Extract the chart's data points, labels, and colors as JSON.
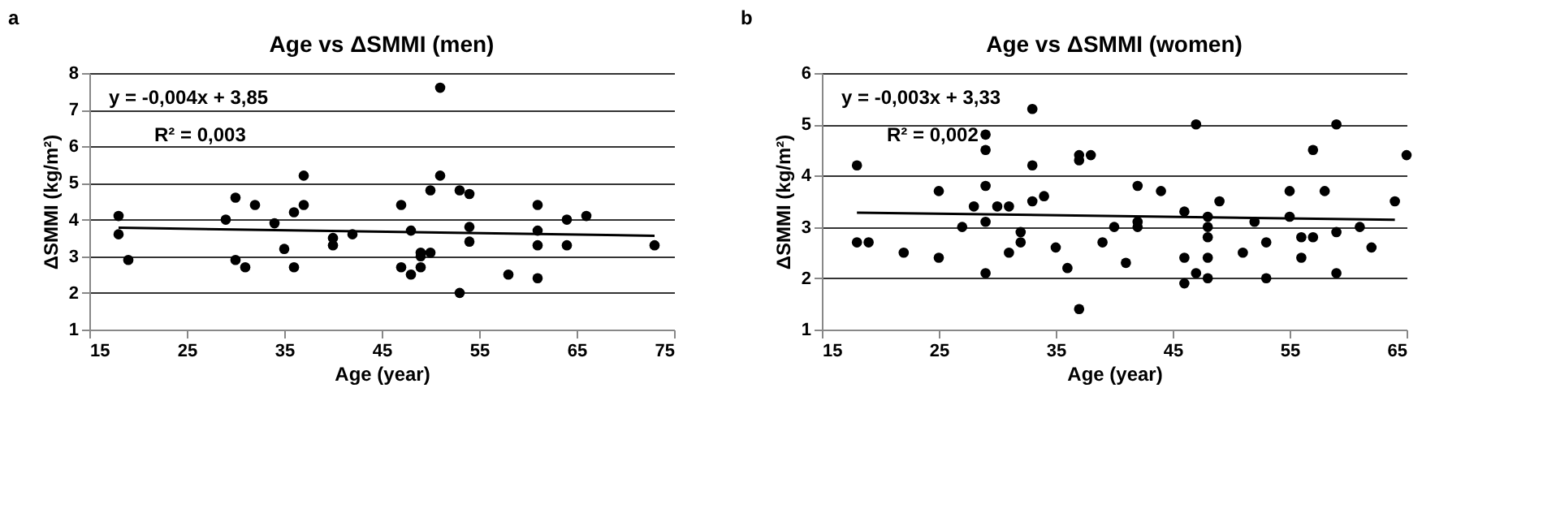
{
  "chart_data": [
    {
      "type": "scatter",
      "title": "Age vs ΔSMMI (men)",
      "xlabel": "Age (year)",
      "ylabel": "ΔSMMI (kg/m²)",
      "annotations": [
        "a",
        "y = -0,004x + 3,85",
        "R² = 0,003"
      ],
      "xlim": [
        15,
        75
      ],
      "xticks": [
        15,
        25,
        35,
        45,
        55,
        65,
        75
      ],
      "ylim": [
        1,
        8
      ],
      "yticks": [
        1,
        2,
        3,
        4,
        5,
        6,
        7,
        8
      ],
      "grid": "y",
      "series": [
        {
          "type": "scatter",
          "marker": "circle",
          "color": "#000000",
          "x": [
            18,
            18,
            19,
            29,
            30,
            30,
            31,
            32,
            34,
            35,
            36,
            36,
            37,
            37,
            40,
            40,
            42,
            47,
            47,
            48,
            48,
            49,
            49,
            49,
            50,
            50,
            51,
            51,
            53,
            53,
            54,
            54,
            54,
            58,
            61,
            61,
            61,
            61,
            64,
            64,
            66,
            73
          ],
          "values": [
            4.1,
            3.6,
            2.9,
            4.0,
            4.6,
            2.9,
            2.7,
            4.4,
            3.9,
            3.2,
            4.2,
            2.7,
            5.2,
            4.4,
            3.5,
            3.3,
            3.6,
            4.4,
            2.7,
            3.7,
            2.5,
            3.1,
            3.0,
            2.7,
            3.1,
            4.8,
            7.6,
            5.2,
            4.8,
            2.0,
            4.7,
            3.8,
            3.4,
            2.5,
            4.4,
            3.7,
            3.3,
            2.4,
            4.0,
            3.3,
            4.1,
            3.3
          ]
        },
        {
          "type": "line",
          "marker": "none",
          "color": "#000000",
          "line_style": "solid",
          "x": [
            18,
            73
          ],
          "values": [
            3.78,
            3.56
          ]
        }
      ]
    },
    {
      "type": "scatter",
      "title": "Age vs ΔSMMI (women)",
      "xlabel": "Age (year)",
      "ylabel": "ΔSMMI (kg/m²)",
      "annotations": [
        "b",
        "y = -0,003x + 3,33",
        "R² = 0,002"
      ],
      "xlim": [
        15,
        65
      ],
      "xticks": [
        15,
        25,
        35,
        45,
        55,
        65
      ],
      "ylim": [
        1,
        6
      ],
      "yticks": [
        1,
        2,
        3,
        4,
        5,
        6
      ],
      "grid": "y",
      "series": [
        {
          "type": "scatter",
          "marker": "circle",
          "color": "#000000",
          "x": [
            18,
            18,
            19,
            22,
            25,
            25,
            27,
            28,
            29,
            29,
            29,
            29,
            29,
            30,
            31,
            31,
            32,
            32,
            33,
            33,
            33,
            34,
            35,
            36,
            37,
            37,
            37,
            38,
            39,
            40,
            41,
            42,
            42,
            42,
            44,
            46,
            46,
            46,
            47,
            47,
            48,
            48,
            48,
            48,
            48,
            49,
            51,
            52,
            53,
            53,
            55,
            55,
            56,
            56,
            57,
            57,
            58,
            59,
            59,
            59,
            61,
            62,
            64,
            65
          ],
          "values": [
            4.2,
            2.7,
            2.7,
            2.5,
            3.7,
            2.4,
            3.0,
            3.4,
            4.8,
            4.5,
            3.8,
            3.1,
            2.1,
            3.4,
            3.4,
            2.5,
            2.9,
            2.7,
            5.3,
            4.2,
            3.5,
            3.6,
            2.6,
            2.2,
            4.4,
            4.3,
            1.4,
            4.4,
            2.7,
            3.0,
            2.3,
            3.8,
            3.1,
            3.0,
            3.7,
            3.3,
            2.4,
            1.9,
            5.0,
            2.1,
            3.2,
            3.0,
            2.8,
            2.4,
            2.0,
            3.5,
            2.5,
            3.1,
            2.7,
            2.0,
            3.7,
            3.2,
            2.8,
            2.4,
            4.5,
            2.8,
            3.7,
            5.0,
            2.9,
            2.1,
            3.0,
            2.6,
            3.5,
            4.4
          ]
        },
        {
          "type": "line",
          "marker": "none",
          "color": "#000000",
          "line_style": "solid",
          "x": [
            18,
            64
          ],
          "values": [
            3.28,
            3.14
          ]
        }
      ]
    }
  ]
}
